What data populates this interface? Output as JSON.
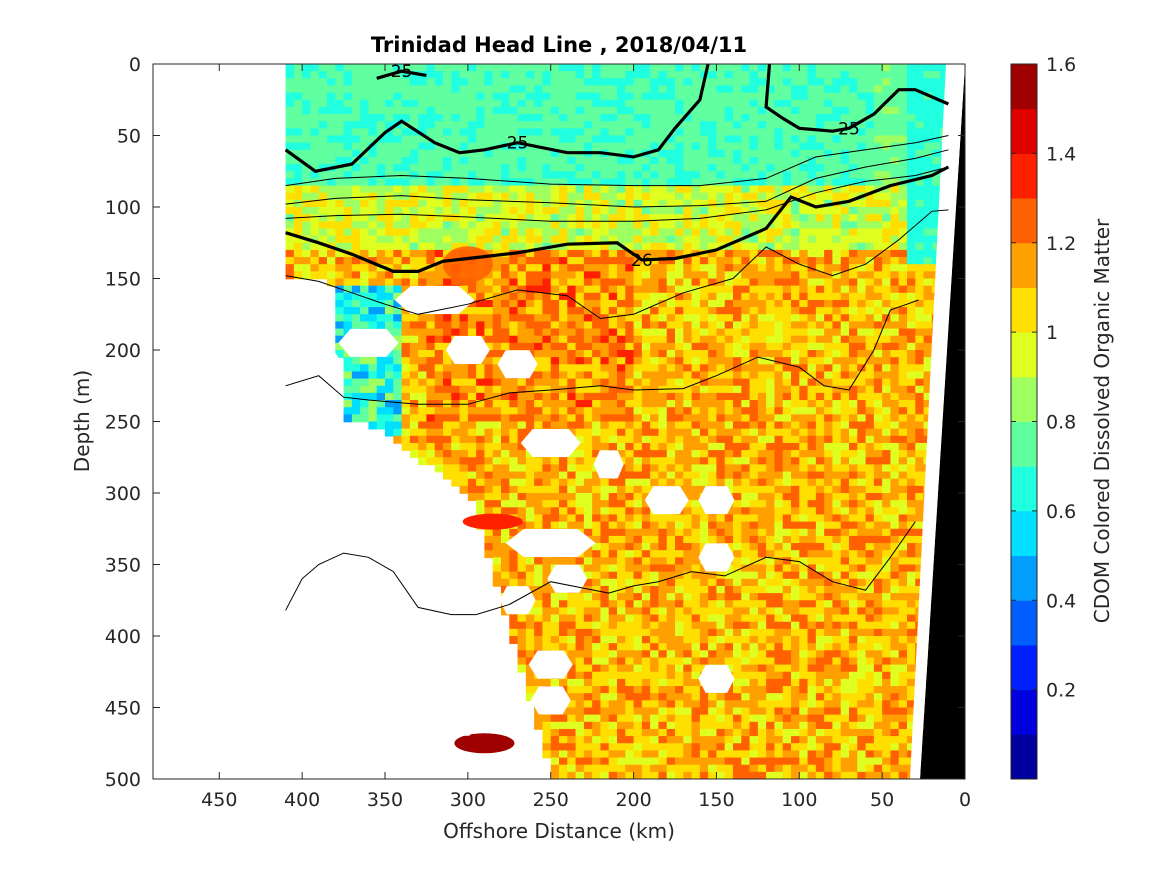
{
  "chart_data": {
    "type": "heatmap",
    "title": "Trinidad Head Line , 2018/04/11",
    "xlabel": "Offshore Distance (km)",
    "ylabel": "Depth (m)",
    "xlim": [
      490,
      0
    ],
    "ylim": [
      0,
      500
    ],
    "x_reversed": true,
    "y_reversed": true,
    "x_ticks": [
      "450",
      "400",
      "350",
      "300",
      "250",
      "200",
      "150",
      "100",
      "50",
      "0"
    ],
    "y_ticks": [
      "0",
      "50",
      "100",
      "150",
      "200",
      "250",
      "300",
      "350",
      "400",
      "450",
      "500"
    ],
    "colorbar": {
      "label": "CDOM Colored Dissolved Organic Matter",
      "range": [
        0,
        1.6
      ],
      "ticks": [
        "0.2",
        "0.4",
        "0.6",
        "0.8",
        "1",
        "1.2",
        "1.4",
        "1.6"
      ],
      "colormap": "jet",
      "levels": 16
    },
    "field_summary": [
      {
        "region": "surface layer 0-80 m",
        "cdom": 0.7
      },
      {
        "region": "130-300 m, 150-300 km offshore",
        "cdom": 1.2
      },
      {
        "region": "below 300 m",
        "cdom": 1.1
      }
    ],
    "contours": [
      {
        "label": "25",
        "x": [
          410,
          392,
          370,
          350,
          340,
          320,
          305,
          290,
          270,
          240,
          220,
          200,
          185,
          175,
          160,
          155
        ],
        "y": [
          60,
          75,
          70,
          48,
          40,
          55,
          62,
          60,
          55,
          62,
          62,
          65,
          60,
          45,
          25,
          0
        ]
      },
      {
        "label": "25",
        "x": [
          355,
          340,
          325
        ],
        "y": [
          10,
          5,
          8
        ]
      },
      {
        "label": "25",
        "x": [
          118,
          120,
          110,
          100,
          80,
          70,
          55,
          40,
          30,
          10
        ],
        "y": [
          0,
          30,
          38,
          45,
          47,
          45,
          35,
          18,
          18,
          28
        ]
      },
      {
        "label": "26",
        "x": [
          410,
          390,
          370,
          345,
          330,
          315,
          300,
          270,
          240,
          210,
          195,
          175,
          150,
          120,
          105,
          90,
          70,
          45,
          20,
          10
        ],
        "y": [
          118,
          125,
          133,
          145,
          145,
          138,
          136,
          132,
          126,
          125,
          137,
          136,
          130,
          115,
          93,
          100,
          96,
          85,
          78,
          72
        ]
      },
      {
        "label": "",
        "x": [
          410,
          380,
          340,
          300,
          250,
          200,
          160,
          120,
          90,
          60,
          30,
          10
        ],
        "y": [
          85,
          80,
          78,
          80,
          84,
          85,
          85,
          80,
          65,
          60,
          55,
          50
        ]
      },
      {
        "label": "",
        "x": [
          410,
          380,
          340,
          300,
          250,
          200,
          160,
          120,
          90,
          60,
          30,
          10
        ],
        "y": [
          98,
          94,
          92,
          95,
          97,
          100,
          99,
          96,
          80,
          72,
          66,
          60
        ]
      },
      {
        "label": "",
        "x": [
          410,
          380,
          340,
          300,
          250,
          200,
          160,
          120,
          90,
          60,
          30,
          10
        ],
        "y": [
          108,
          106,
          105,
          107,
          110,
          110,
          108,
          102,
          90,
          82,
          78,
          72
        ]
      },
      {
        "label": "",
        "x": [
          410,
          390,
          370,
          350,
          330,
          300,
          270,
          240,
          220,
          200,
          170,
          140,
          120,
          100,
          80,
          60,
          40,
          20,
          10
        ],
        "y": [
          148,
          152,
          160,
          168,
          175,
          168,
          158,
          162,
          178,
          175,
          160,
          150,
          128,
          140,
          148,
          140,
          123,
          103,
          102
        ]
      },
      {
        "label": "",
        "x": [
          410,
          390,
          375,
          360,
          330,
          300,
          275,
          250,
          220,
          200,
          170,
          150,
          125,
          100,
          85,
          70,
          55,
          45,
          35,
          28
        ],
        "y": [
          225,
          218,
          233,
          235,
          238,
          238,
          230,
          228,
          225,
          228,
          227,
          218,
          205,
          212,
          225,
          228,
          200,
          172,
          168,
          165
        ]
      },
      {
        "label": "",
        "x": [
          410,
          400,
          390,
          375,
          360,
          345,
          330,
          310,
          295,
          275,
          250,
          215,
          200,
          185,
          165,
          145,
          120,
          100,
          80,
          60,
          45,
          30
        ],
        "y": [
          382,
          360,
          350,
          342,
          345,
          355,
          380,
          385,
          385,
          378,
          362,
          370,
          365,
          362,
          355,
          358,
          345,
          348,
          362,
          368,
          345,
          320
        ]
      }
    ]
  }
}
